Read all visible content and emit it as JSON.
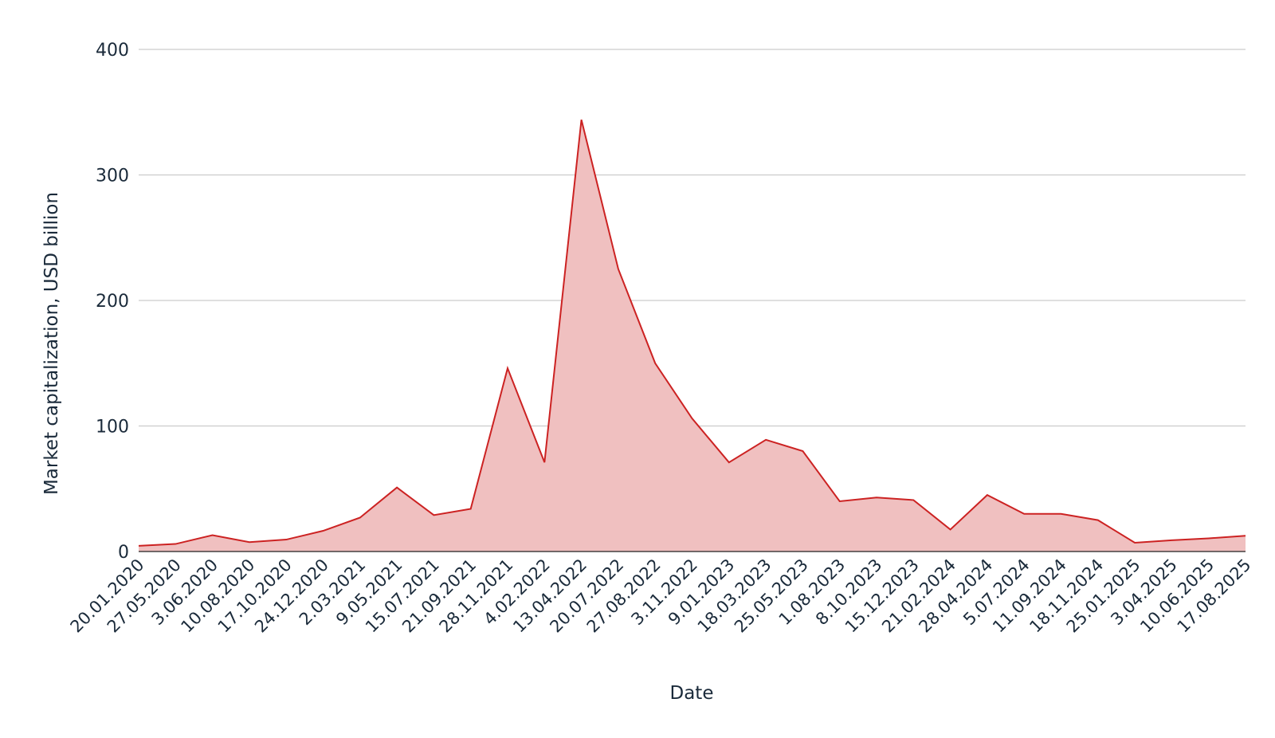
{
  "chart_data": {
    "type": "area",
    "xlabel": "Date",
    "ylabel": "Market capitalization, USD billion",
    "ylim": [
      0,
      400
    ],
    "yticks": [
      0,
      100,
      200,
      300,
      400
    ],
    "grid": true,
    "line_color": "#cc2222",
    "fill_color": "#f0c0c0",
    "x": [
      "20.01.2020",
      "27.05.2020",
      "3.06.2020",
      "10.08.2020",
      "17.10.2020",
      "24.12.2020",
      "2.03.2021",
      "9.05.2021",
      "15.07.2021",
      "21.09.2021",
      "28.11.2021",
      "4.02.2022",
      "13.04.2022",
      "20.07.2022",
      "27.08.2022",
      "3.11.2022",
      "9.01.2023",
      "18.03.2023",
      "25.05.2023",
      "1.08.2023",
      "8.10.2023",
      "15.12.2023",
      "21.02.2024",
      "28.04.2024",
      "5.07.2024",
      "11.09.2024",
      "18.11.2024",
      "25.01.2025",
      "3.04.2025",
      "10.06.2025",
      "17.08.2025"
    ],
    "values": [
      4.5,
      6,
      13,
      7.5,
      9.5,
      16.5,
      27,
      51,
      29,
      34,
      146,
      71,
      344,
      225,
      150,
      106,
      71,
      89,
      80,
      40,
      43,
      41,
      17.5,
      45,
      30,
      30,
      25,
      7,
      9,
      10.5,
      12.5
    ]
  }
}
